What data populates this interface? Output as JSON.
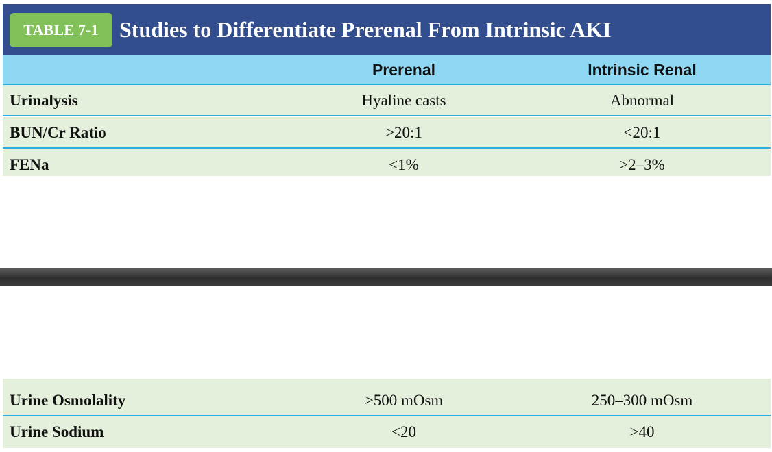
{
  "table": {
    "badge": "TABLE 7-1",
    "title": "Studies to Differentiate Prerenal From Intrinsic AKI",
    "columns": [
      "",
      "Prerenal",
      "Intrinsic Renal"
    ],
    "rows": [
      {
        "label": "Urinalysis",
        "prerenal": "Hyaline casts",
        "intrinsic": "Abnormal"
      },
      {
        "label": "BUN/Cr Ratio",
        "prerenal": ">20:1",
        "intrinsic": "<20:1"
      },
      {
        "label": "FENa",
        "prerenal": "<1%",
        "intrinsic": ">2–3%"
      }
    ],
    "rows_lower": [
      {
        "label": "Urine Osmolality",
        "prerenal": ">500 mOsm",
        "intrinsic": "250–300 mOsm"
      },
      {
        "label": "Urine Sodium",
        "prerenal": "<20",
        "intrinsic": ">40"
      }
    ]
  },
  "colors": {
    "header_bg": "#324e8e",
    "badge_bg": "#82c05a",
    "column_header_bg": "#8fd8f4",
    "row_bg": "#e4f0db",
    "rule": "#2eaee0"
  }
}
